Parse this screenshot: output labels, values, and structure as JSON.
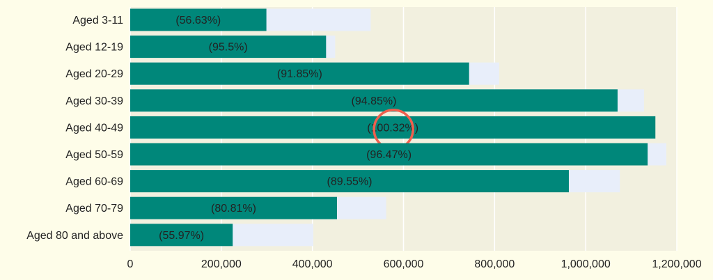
{
  "chart_data": {
    "type": "bar",
    "orientation": "horizontal",
    "categories": [
      "Aged 3-11",
      "Aged 12-19",
      "Aged 20-29",
      "Aged 30-39",
      "Aged 40-49",
      "Aged 50-59",
      "Aged 60-69",
      "Aged 70-79",
      "Aged 80 and above"
    ],
    "series": [
      {
        "values": [
          528000,
          450000,
          810000,
          1128000,
          1150000,
          1177000,
          1075000,
          562000,
          402000
        ],
        "color": "#e8eefa"
      },
      {
        "values": [
          299000,
          430000,
          744000,
          1070000,
          1153000,
          1136000,
          963000,
          454000,
          225000
        ],
        "color": "#00877a"
      }
    ],
    "data_labels": [
      "(56.63%)",
      "(95.5%)",
      "(91.85%)",
      "(94.85%)",
      "(100.32%)",
      "(96.47%)",
      "(89.55%)",
      "(80.81%)",
      "(55.97%)"
    ],
    "xlim": [
      0,
      1200000
    ],
    "x_ticks": [
      0,
      200000,
      400000,
      600000,
      800000,
      1000000,
      1200000
    ],
    "x_tick_labels": [
      "0",
      "200,000",
      "400,000",
      "600,000",
      "800,000",
      "1,000,000",
      "1,200,000"
    ],
    "grid": true,
    "plot_background": "#f2f0df",
    "highlight": {
      "category": "Aged 40-49",
      "shape": "circle",
      "color": "#f0604e"
    }
  }
}
